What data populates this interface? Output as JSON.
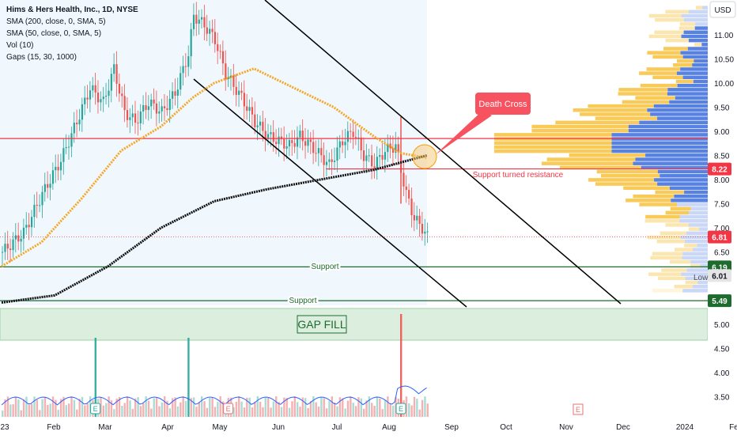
{
  "header": {
    "title": "Hims & Hers Health, Inc., 1D, NYSE",
    "indicators": [
      "SMA (200, close, 0, SMA, 5)",
      "SMA (50, close, 0, SMA, 5)",
      "Vol (10)",
      "Gaps (15, 30, 1000)"
    ]
  },
  "currency": "USD",
  "annotations": {
    "death_cross": "Death Cross",
    "support_resistance": "Support turned resistance",
    "support_upper": "Support",
    "support_lower": "Support",
    "gap_fill": "GAP FILL",
    "low_label": "Low"
  },
  "price_badges": [
    {
      "name": "resistance",
      "value": "8.22",
      "color": "#f23645"
    },
    {
      "name": "last",
      "value": "6.81",
      "color": "#f23645"
    },
    {
      "name": "support-upper",
      "value": "6.19",
      "color": "#1e6b2e"
    },
    {
      "name": "low",
      "value": "6.01",
      "color": "#e5e5e5"
    },
    {
      "name": "support-lower",
      "value": "5.49",
      "color": "#1e6b2e"
    }
  ],
  "earnings_marker": "E",
  "chart_data": {
    "type": "candlestick",
    "y_ticks": [
      "11.00",
      "10.50",
      "10.00",
      "9.50",
      "9.00",
      "8.50",
      "8.00",
      "7.50",
      "7.00",
      "6.50",
      "6.00",
      "5.50",
      "5.00",
      "4.50",
      "4.00",
      "3.50"
    ],
    "x_ticks": [
      "23",
      "Feb",
      "Mar",
      "Apr",
      "May",
      "Jun",
      "Jul",
      "Aug",
      "Sep",
      "Oct",
      "Nov",
      "Dec",
      "2024",
      "Fe"
    ],
    "levels": {
      "resistance": 8.85,
      "support_turned_resistance": 8.22,
      "support_upper": 6.19,
      "support_lower": 5.49,
      "gap_top": 5.27,
      "gap_bottom": 4.66
    },
    "ohlc_anchors": [
      [
        0,
        6.5
      ],
      [
        8,
        6.9
      ],
      [
        15,
        7.7
      ],
      [
        22,
        8.4
      ],
      [
        28,
        9.2
      ],
      [
        33,
        9.9
      ],
      [
        38,
        9.6
      ],
      [
        42,
        10.3
      ],
      [
        46,
        9.4
      ],
      [
        50,
        9.2
      ],
      [
        55,
        9.6
      ],
      [
        60,
        9.4
      ],
      [
        65,
        9.8
      ],
      [
        70,
        10.6
      ],
      [
        72,
        11.4
      ],
      [
        76,
        11.2
      ],
      [
        80,
        10.9
      ],
      [
        84,
        10.2
      ],
      [
        90,
        9.7
      ],
      [
        95,
        9.2
      ],
      [
        100,
        8.9
      ],
      [
        108,
        8.7
      ],
      [
        112,
        8.9
      ],
      [
        118,
        8.6
      ],
      [
        123,
        8.3
      ],
      [
        128,
        8.8
      ],
      [
        132,
        9.0
      ],
      [
        136,
        8.5
      ],
      [
        140,
        8.3
      ],
      [
        144,
        8.6
      ],
      [
        148,
        8.7
      ],
      [
        150,
        8.2
      ],
      [
        152,
        7.7
      ],
      [
        155,
        7.2
      ],
      [
        158,
        7.0
      ],
      [
        160,
        6.81
      ]
    ],
    "sma200": [
      [
        0,
        5.45
      ],
      [
        20,
        5.6
      ],
      [
        40,
        6.2
      ],
      [
        60,
        7.0
      ],
      [
        80,
        7.55
      ],
      [
        100,
        7.8
      ],
      [
        120,
        8.0
      ],
      [
        140,
        8.2
      ],
      [
        160,
        8.5
      ]
    ],
    "sma50": [
      [
        0,
        6.2
      ],
      [
        15,
        6.7
      ],
      [
        30,
        7.6
      ],
      [
        45,
        8.6
      ],
      [
        60,
        9.1
      ],
      [
        72,
        9.7
      ],
      [
        80,
        10.0
      ],
      [
        95,
        10.3
      ],
      [
        110,
        9.9
      ],
      [
        125,
        9.5
      ],
      [
        140,
        8.9
      ],
      [
        150,
        8.55
      ],
      [
        160,
        8.45
      ]
    ],
    "volume_spikes": [
      {
        "index": 35,
        "color": "#26a69a"
      },
      {
        "index": 70,
        "color": "#26a69a"
      },
      {
        "index": 150,
        "color": "#ef5350"
      }
    ],
    "earnings_indices": [
      35,
      85,
      150
    ],
    "earnings_future_x_tick": "Nov"
  }
}
